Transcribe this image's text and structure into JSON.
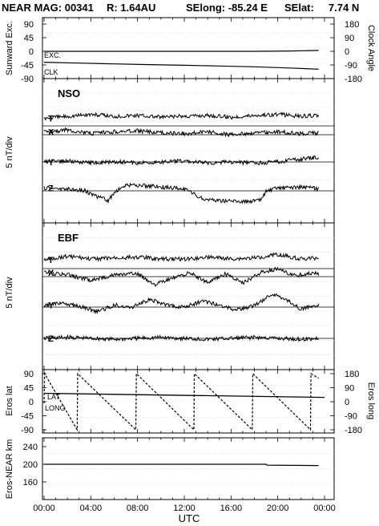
{
  "header": {
    "mission": "NEAR MAG: 00341",
    "radius": "R: 1.64AU",
    "selong": "SElong:  -85.24 E",
    "selat": "SElat:     7.74 N"
  },
  "x_axis": {
    "label": "UTC",
    "ticks": [
      "00:00",
      "04:00",
      "08:00",
      "12:00",
      "16:00",
      "20:00",
      "00:00"
    ],
    "range_hours": [
      0,
      24
    ]
  },
  "chart_data": [
    {
      "type": "line",
      "panel": "sunward",
      "ylabel_left": "Sunward Exc.",
      "ylabel_right": "Clock Angle",
      "yticks_left": [
        "90",
        "45",
        "0",
        "-45",
        "-90"
      ],
      "yticks_right": [
        "180",
        "90",
        "0",
        "-90",
        "-180"
      ],
      "ylim_left": [
        -90,
        90
      ],
      "ylim_right": [
        -180,
        180
      ],
      "series": [
        {
          "name": "EXC.",
          "x": [
            0,
            3,
            6,
            9,
            12,
            15,
            18,
            21,
            23.5
          ],
          "y": [
            0,
            0,
            0,
            0,
            0,
            0,
            0,
            1,
            3
          ]
        },
        {
          "name": "CLK",
          "x": [
            0,
            3,
            6,
            9,
            12,
            15,
            18,
            21,
            23.5
          ],
          "y": [
            -72,
            -78,
            -83,
            -88,
            -92,
            -97,
            -102,
            -110,
            -118
          ],
          "axis": "right"
        }
      ]
    },
    {
      "type": "line",
      "panel": "nso",
      "title": "NSO",
      "ylabel": "5 nT/div",
      "series": [
        {
          "name": "T",
          "x": [
            0,
            2,
            4,
            6,
            8,
            10,
            12,
            14,
            16,
            18,
            20,
            22,
            23.5
          ],
          "y": [
            0.8,
            1.0,
            1.2,
            1.0,
            1.1,
            0.9,
            1.0,
            1.1,
            0.9,
            1.1,
            1.2,
            1.0,
            1.1
          ]
        },
        {
          "name": "X",
          "x": [
            0,
            2,
            4,
            6,
            8,
            10,
            12,
            14,
            16,
            18,
            20,
            22,
            23.5
          ],
          "y": [
            0.3,
            0.5,
            0.1,
            0.3,
            0.4,
            0.2,
            0.1,
            0.3,
            0.0,
            0.2,
            0.3,
            0.1,
            0.2
          ]
        },
        {
          "name": "Y",
          "x": [
            0,
            2,
            4,
            6,
            8,
            10,
            12,
            14,
            16,
            18,
            20,
            22,
            23.5
          ],
          "y": [
            0.0,
            0.1,
            -0.1,
            0.0,
            -0.1,
            0.0,
            0.1,
            -0.1,
            0.0,
            -0.1,
            0.0,
            0.3,
            0.5
          ]
        },
        {
          "name": "Z",
          "x": [
            0,
            2,
            3.5,
            4.5,
            5.5,
            6,
            7,
            9,
            12,
            13.5,
            15,
            17,
            18.5,
            19,
            20,
            22,
            23.5
          ],
          "y": [
            0.3,
            0.2,
            0.0,
            -0.6,
            -1.0,
            -0.2,
            0.6,
            0.5,
            0.2,
            -0.8,
            -1.0,
            -1.1,
            -1.0,
            -0.1,
            0.3,
            0.4,
            0.2
          ]
        }
      ]
    },
    {
      "type": "line",
      "panel": "ebf",
      "title": "EBF",
      "ylabel": "5 nT/div",
      "series": [
        {
          "name": "T",
          "x": [
            0,
            2,
            4,
            6,
            8,
            10,
            12,
            14,
            16,
            18,
            20,
            22,
            23.5
          ],
          "y": [
            0.9,
            1.3,
            1.0,
            1.1,
            1.2,
            1.0,
            1.0,
            1.2,
            1.0,
            1.1,
            1.5,
            1.0,
            1.1
          ]
        },
        {
          "name": "X",
          "x": [
            0,
            2,
            4,
            6,
            8,
            9.5,
            11,
            12.5,
            14,
            15.5,
            17,
            18.5,
            20,
            21.5,
            23,
            23.5
          ],
          "y": [
            0.4,
            0.2,
            -0.4,
            0.2,
            0.3,
            -0.8,
            -0.2,
            0.4,
            -0.6,
            0.3,
            -0.7,
            0.4,
            0.8,
            0.1,
            0.4,
            0.3
          ]
        },
        {
          "name": "Y",
          "x": [
            0,
            1.5,
            3,
            4.5,
            6,
            7.5,
            9,
            10.5,
            12,
            13.5,
            15,
            16.5,
            18,
            19.5,
            20.5,
            22,
            23.5
          ],
          "y": [
            0.2,
            0.4,
            0.1,
            -0.5,
            0.2,
            0.0,
            0.8,
            0.2,
            0.0,
            0.6,
            0.2,
            -0.3,
            0.2,
            1.3,
            0.9,
            -0.2,
            0.3
          ]
        },
        {
          "name": "Z",
          "x": [
            0,
            2,
            4,
            6,
            8,
            10,
            12,
            14,
            16,
            18,
            20,
            22,
            23.5
          ],
          "y": [
            0.0,
            0.1,
            0.0,
            -0.1,
            0.0,
            0.1,
            0.0,
            -0.1,
            0.0,
            0.1,
            0.0,
            -0.1,
            0.0
          ]
        }
      ]
    },
    {
      "type": "line",
      "panel": "eros",
      "ylabel_left": "Eros lat",
      "ylabel_right": "Eros long",
      "yticks_left": [
        "90",
        "45",
        "0",
        "-45",
        "-90"
      ],
      "yticks_right": [
        "180",
        "90",
        "0",
        "-90",
        "-180"
      ],
      "ylim_left": [
        -90,
        90
      ],
      "ylim_right": [
        -180,
        180
      ],
      "series": [
        {
          "name": "LAT",
          "x": [
            0,
            24
          ],
          "y": [
            27,
            14
          ]
        },
        {
          "name": "LONG",
          "x": [
            0,
            0.05,
            2.83,
            2.87,
            7.85,
            7.9,
            12.82,
            12.86,
            17.82,
            17.86,
            22.8,
            22.84,
            23.5
          ],
          "y": [
            -10,
            180,
            -180,
            180,
            -180,
            180,
            -180,
            180,
            -180,
            180,
            -180,
            180,
            150
          ],
          "axis": "right"
        }
      ]
    },
    {
      "type": "line",
      "panel": "range",
      "ylabel": "Eros-NEAR km",
      "yticks": [
        "240",
        "200",
        "160"
      ],
      "ylim": [
        120,
        260
      ],
      "series": [
        {
          "name": "",
          "x": [
            0,
            19,
            19.1,
            23.5
          ],
          "y": [
            200,
            200,
            198,
            197
          ]
        }
      ]
    }
  ]
}
